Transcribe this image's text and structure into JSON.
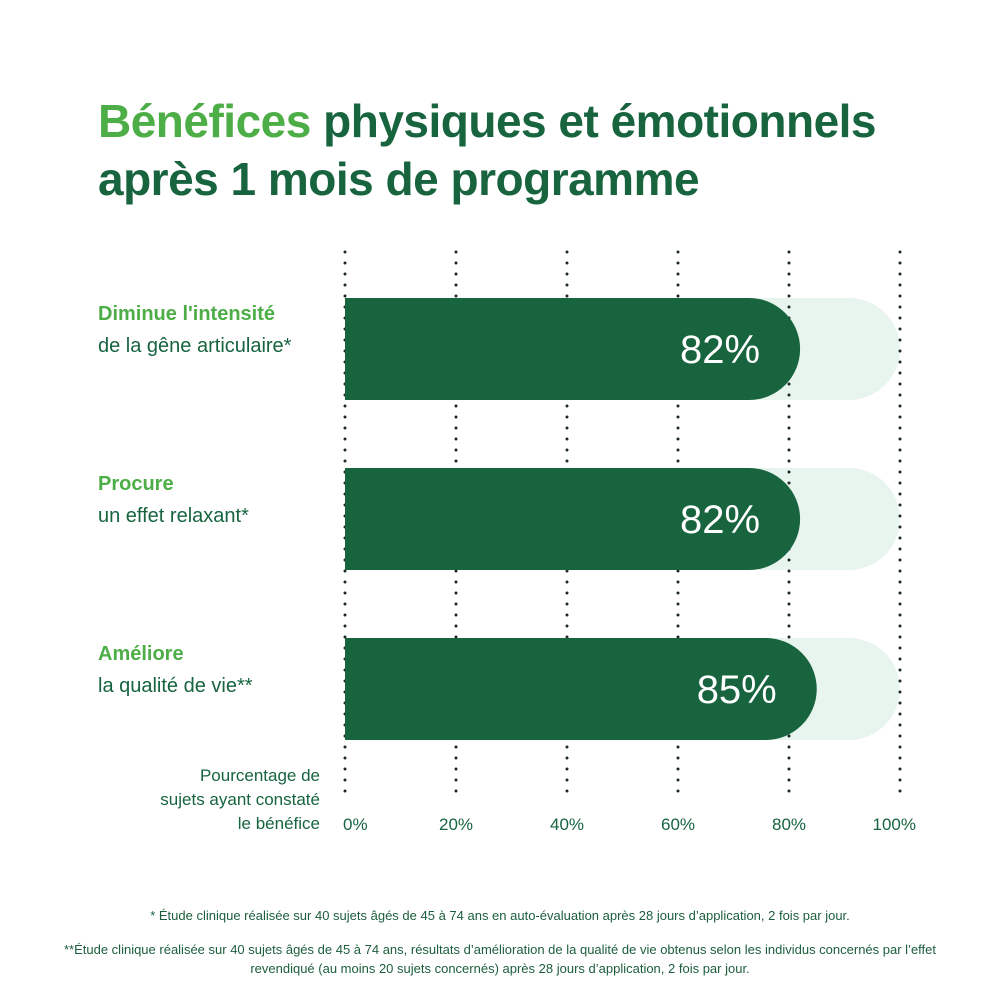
{
  "title": {
    "accent": "Bénéfices",
    "rest_line1": "physiques et émotionnels",
    "line2": "après 1 mois de programme"
  },
  "colors": {
    "bar": "#17643f",
    "track": "#e8f4ee",
    "accent": "#4dae47",
    "text": "#17643f",
    "gridline": "#1b2a22"
  },
  "chart_data": {
    "type": "bar",
    "orientation": "horizontal",
    "categories": [
      {
        "strong": "Diminue l'intensité",
        "sub": "de la gêne articulaire*"
      },
      {
        "strong": "Procure",
        "sub": "un effet relaxant*"
      },
      {
        "strong": "Améliore",
        "sub": "la qualité de vie**"
      }
    ],
    "values": [
      82,
      82,
      85
    ],
    "value_labels": [
      "82%",
      "82%",
      "85%"
    ],
    "xlim": [
      0,
      100
    ],
    "xticks": [
      0,
      20,
      40,
      60,
      80,
      100
    ],
    "xtick_labels": [
      "0%",
      "20%",
      "40%",
      "60%",
      "80%",
      "100%"
    ],
    "xlabel": [
      "Pourcentage de",
      "sujets ayant constaté",
      "le bénéfice"
    ],
    "grid": "vertical dotted"
  },
  "footnotes": [
    "* Étude clinique réalisée sur 40 sujets âgés de 45 à 74 ans en auto-évaluation après 28 jours d’application, 2 fois par jour.",
    "**Étude clinique réalisée sur 40 sujets âgés de 45 à 74 ans, résultats d’amélioration de la qualité de vie obtenus selon les individus concernés par l’effet revendiqué (au moins 20 sujets concernés) après 28 jours d’application, 2 fois par jour."
  ]
}
